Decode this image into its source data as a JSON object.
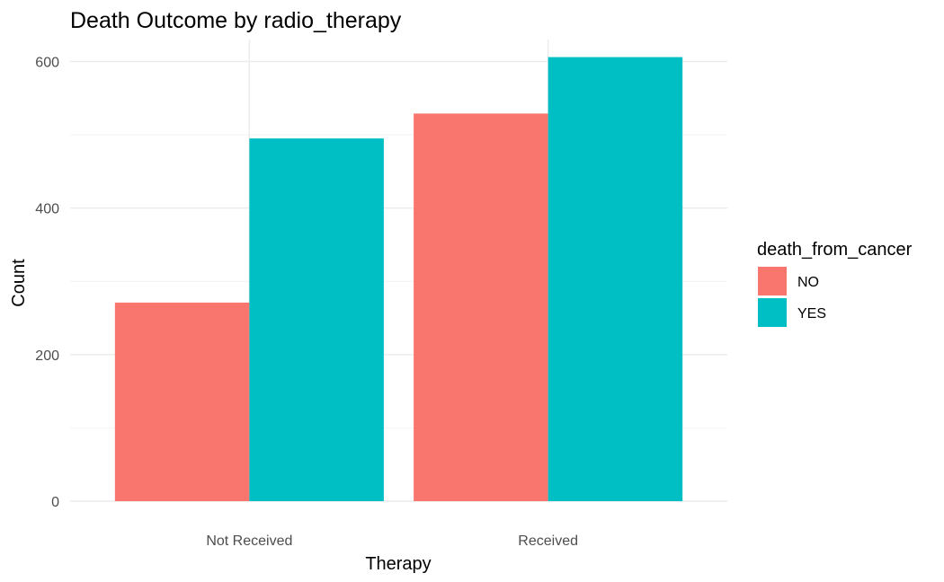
{
  "chart_data": {
    "type": "bar",
    "title": "Death Outcome by radio_therapy",
    "xlabel": "Therapy",
    "ylabel": "Count",
    "categories": [
      "Not Received",
      "Received"
    ],
    "series": [
      {
        "name": "NO",
        "values": [
          271,
          529
        ],
        "color": "#F8766D"
      },
      {
        "name": "YES",
        "values": [
          495,
          606
        ],
        "color": "#00BFC4"
      }
    ],
    "yticks": [
      0,
      200,
      400,
      600
    ],
    "ylim": [
      0,
      630
    ],
    "grid": true,
    "legend": {
      "title": "death_from_cancer",
      "position": "right"
    }
  }
}
